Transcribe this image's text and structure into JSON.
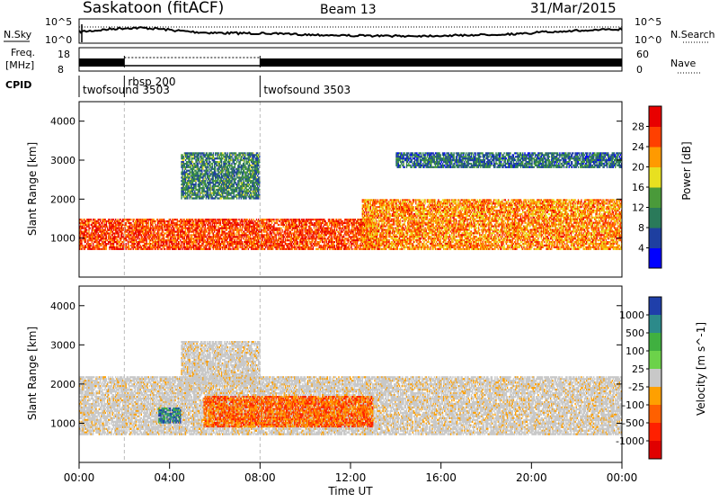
{
  "header": {
    "station": "Saskatoon (fitACF)",
    "beam": "Beam 13",
    "date": "31/Mar/2015"
  },
  "top_panel_labels": {
    "nsky": "N.Sky",
    "nsearch": "N.Search",
    "freq_line1": "Freq.",
    "freq_line2": "[MHz]",
    "nave": "Nave",
    "cpid": "CPID",
    "nsky_ticks": [
      "10^5",
      "10^0"
    ],
    "freq_ticks": [
      "18",
      "8"
    ],
    "nave_ticks": [
      "60",
      "0"
    ]
  },
  "cpid_segments": [
    {
      "label": "twofsound 3503",
      "start_hour": 0.0
    },
    {
      "label": "rbsp 200",
      "start_hour": 2.0
    },
    {
      "label": "twofsound 3503",
      "start_hour": 8.0
    }
  ],
  "x_axis": {
    "label": "Time UT",
    "ticks": [
      "00:00",
      "04:00",
      "08:00",
      "12:00",
      "16:00",
      "20:00",
      "00:00"
    ]
  },
  "colors": {
    "power_scale": [
      "#0000ff",
      "#1e3fa0",
      "#2a7a5a",
      "#4a9a3a",
      "#e8e020",
      "#ff9a00",
      "#ff4000",
      "#e80000"
    ],
    "velocity_scale": [
      "#1f3faa",
      "#2c8a8a",
      "#40b040",
      "#6cd24a",
      "#c8c8c8",
      "#ffa000",
      "#ff6000",
      "#ff2000",
      "#e00000"
    ]
  },
  "chart_data": [
    {
      "type": "heatmap",
      "title": "Power",
      "xlabel": "",
      "ylabel": "Slant Range [km]",
      "xlim": [
        0,
        24
      ],
      "ylim": [
        0,
        4500
      ],
      "y_ticks": [
        "1000",
        "2000",
        "3000",
        "4000"
      ],
      "colorbar": {
        "label": "Power [dB]",
        "ticks": [
          "4",
          "8",
          "12",
          "16",
          "20",
          "24",
          "28"
        ],
        "range": [
          0,
          32
        ]
      },
      "regions": [
        {
          "name": "ground-scatter-near",
          "t0": 0.0,
          "t1": 13.0,
          "r0": 700,
          "r1": 1500,
          "value": 28
        },
        {
          "name": "ionospheric-arc",
          "t0": 4.5,
          "t1": 8.0,
          "r0": 2000,
          "r1": 3200,
          "value": 10
        },
        {
          "name": "evening-band",
          "t0": 12.5,
          "t1": 24.0,
          "r0": 700,
          "r1": 2000,
          "value": 24
        },
        {
          "name": "far-band",
          "t0": 14.0,
          "t1": 24.0,
          "r0": 2800,
          "r1": 3200,
          "value": 8
        }
      ]
    },
    {
      "type": "heatmap",
      "title": "Velocity",
      "xlabel": "Time UT",
      "ylabel": "Slant Range [km]",
      "xlim": [
        0,
        24
      ],
      "ylim": [
        0,
        4500
      ],
      "y_ticks": [
        "1000",
        "2000",
        "3000",
        "4000"
      ],
      "colorbar": {
        "label": "Velocity [m s^-1]",
        "ticks": [
          "1000",
          "500",
          "100",
          "25",
          "-25",
          "-100",
          "-500",
          "-1000"
        ]
      },
      "regions": [
        {
          "name": "ground-scatter",
          "t0": 0.0,
          "t1": 24.0,
          "r0": 700,
          "r1": 2200,
          "value": 0
        },
        {
          "name": "arc-gray",
          "t0": 4.5,
          "t1": 8.0,
          "r0": 2000,
          "r1": 3100,
          "value": 0
        },
        {
          "name": "blue-patch",
          "t0": 3.5,
          "t1": 4.5,
          "r0": 1000,
          "r1": 1400,
          "value": 600
        },
        {
          "name": "orange-patch",
          "t0": 5.5,
          "t1": 13.0,
          "r0": 900,
          "r1": 1700,
          "value": -150
        }
      ]
    }
  ]
}
